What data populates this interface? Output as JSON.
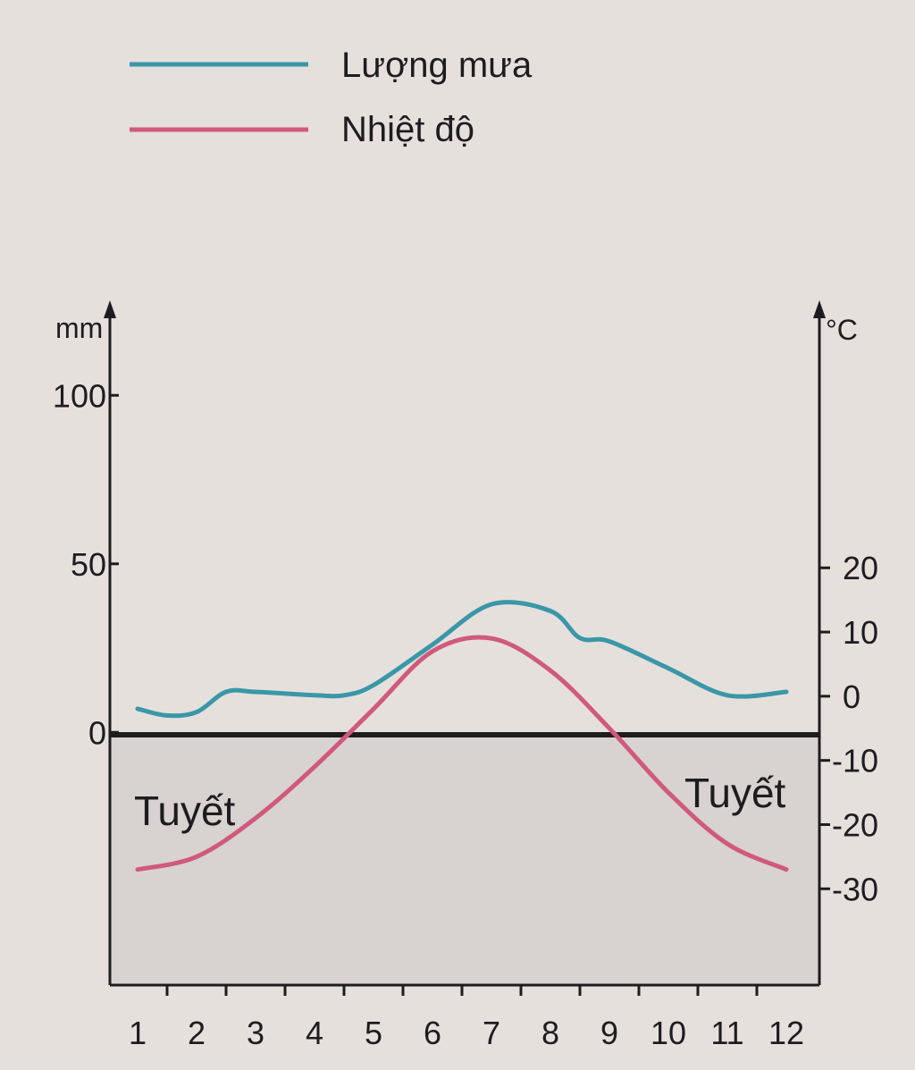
{
  "chart_data": {
    "type": "line",
    "legend": {
      "placement": "top-left",
      "items": [
        {
          "label": "Lượng mưa",
          "color": "#3a97a8"
        },
        {
          "label": "Nhiệt độ",
          "color": "#d05a7c"
        }
      ]
    },
    "x": {
      "ticks": [
        "1",
        "2",
        "3",
        "4",
        "5",
        "6",
        "7",
        "8",
        "9",
        "10",
        "11",
        "12"
      ]
    },
    "y_left": {
      "unit": "mm",
      "range": [
        -75,
        125
      ],
      "ticks": [
        "0",
        "50",
        "100"
      ]
    },
    "y_right": {
      "unit": "°C",
      "range": [
        -45,
        60
      ],
      "ticks": [
        "20",
        "10",
        "0",
        "-10",
        "-20",
        "-30"
      ]
    },
    "annotations": [
      {
        "text": "Tuyết",
        "side": "left"
      },
      {
        "text": "Tuyết",
        "side": "right"
      }
    ],
    "series": [
      {
        "name": "Lượng mưa",
        "axis": "left",
        "color": "#3a97a8",
        "x": [
          1,
          1.5,
          2,
          2.5,
          3,
          4,
          4.5,
          5,
          6,
          7,
          8,
          8.5,
          9,
          10,
          11,
          12
        ],
        "values": [
          7,
          5,
          6,
          12,
          12,
          11,
          11,
          14,
          26,
          38,
          36,
          28,
          27,
          19,
          11,
          12
        ]
      },
      {
        "name": "Nhiệt độ",
        "axis": "right",
        "color": "#d05a7c",
        "x": [
          1,
          2,
          3,
          4,
          5,
          6,
          7,
          8,
          9,
          10,
          11,
          12
        ],
        "values": [
          -27,
          -25,
          -19,
          -11,
          -2,
          7,
          9,
          4,
          -5,
          -15,
          -23,
          -27
        ]
      }
    ]
  }
}
